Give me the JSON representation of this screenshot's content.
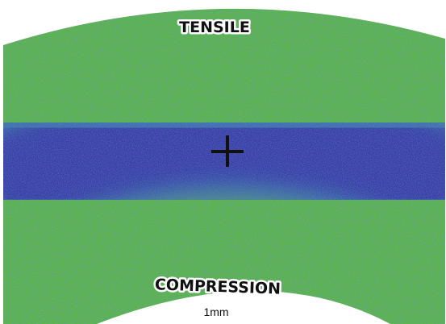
{
  "labels": {
    "top": "TENSILE",
    "bottom": "COMPRESSION",
    "scale": "1mm"
  }
}
